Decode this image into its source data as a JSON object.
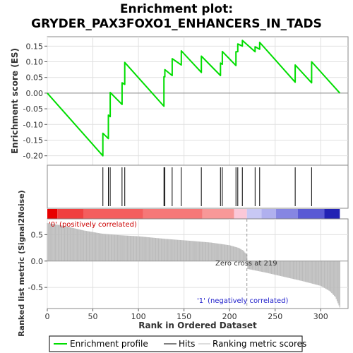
{
  "chart_data": {
    "type": "line",
    "title_line1": "Enrichment plot:",
    "title_line2": "GRYDER_PAX3FOXO1_ENHANCERS_IN_TADS",
    "es_ylabel": "Enrichment score (ES)",
    "metric_ylabel": "Ranked list metric (Signal2Noise)",
    "xlabel": "Rank in Ordered Dataset",
    "x_ticks": [
      "0",
      "50",
      "100",
      "150",
      "200",
      "250",
      "300"
    ],
    "es_ticks": [
      "-0.20",
      "-0.15",
      "-0.10",
      "-0.05",
      "0.00",
      "0.05",
      "0.10",
      "0.15"
    ],
    "metric_ticks": [
      "-0.5",
      "0.0",
      "0.5"
    ],
    "xlim": [
      0,
      330
    ],
    "es_ylim": [
      -0.23,
      0.18
    ],
    "metric_ylim": [
      -0.9,
      0.8
    ],
    "n_genes": 321,
    "zero_cross": 219,
    "zero_cross_label": "Zero cross at 219",
    "positive_label": "'0' (positively correlated)",
    "negative_label": "'1' (negatively correlated)",
    "hits": [
      61,
      67,
      69,
      82,
      85,
      128,
      129,
      137,
      147,
      169,
      190,
      192,
      207,
      209,
      214,
      228,
      233,
      272,
      290
    ],
    "es_points": [
      [
        0,
        0.0
      ],
      [
        61,
        -0.2
      ],
      [
        61,
        -0.128
      ],
      [
        67,
        -0.145
      ],
      [
        67,
        -0.07
      ],
      [
        69,
        -0.075
      ],
      [
        69,
        0.002
      ],
      [
        82,
        -0.036
      ],
      [
        82,
        0.033
      ],
      [
        85,
        0.028
      ],
      [
        85,
        0.098
      ],
      [
        128,
        -0.042
      ],
      [
        128,
        0.052
      ],
      [
        129,
        0.052
      ],
      [
        129,
        0.075
      ],
      [
        137,
        0.056
      ],
      [
        137,
        0.11
      ],
      [
        147,
        0.09
      ],
      [
        147,
        0.135
      ],
      [
        169,
        0.066
      ],
      [
        169,
        0.118
      ],
      [
        190,
        0.056
      ],
      [
        190,
        0.096
      ],
      [
        192,
        0.092
      ],
      [
        192,
        0.133
      ],
      [
        207,
        0.088
      ],
      [
        207,
        0.132
      ],
      [
        209,
        0.132
      ],
      [
        209,
        0.157
      ],
      [
        214,
        0.15
      ],
      [
        214,
        0.168
      ],
      [
        228,
        0.132
      ],
      [
        228,
        0.148
      ],
      [
        233,
        0.14
      ],
      [
        233,
        0.162
      ],
      [
        272,
        0.035
      ],
      [
        272,
        0.09
      ],
      [
        290,
        0.033
      ],
      [
        290,
        0.1
      ],
      [
        321,
        0.0
      ]
    ],
    "metric_profile": [
      [
        0,
        0.72
      ],
      [
        8,
        0.7
      ],
      [
        20,
        0.66
      ],
      [
        40,
        0.58
      ],
      [
        60,
        0.52
      ],
      [
        80,
        0.49
      ],
      [
        100,
        0.47
      ],
      [
        130,
        0.42
      ],
      [
        160,
        0.38
      ],
      [
        180,
        0.35
      ],
      [
        200,
        0.3
      ],
      [
        210,
        0.25
      ],
      [
        215,
        0.2
      ],
      [
        219,
        0.12
      ],
      [
        220,
        -0.15
      ],
      [
        240,
        -0.22
      ],
      [
        260,
        -0.3
      ],
      [
        280,
        -0.38
      ],
      [
        300,
        -0.47
      ],
      [
        310,
        -0.57
      ],
      [
        316,
        -0.68
      ],
      [
        321,
        -0.88
      ]
    ],
    "colorbar_segments": [
      {
        "from": 0,
        "to": 11,
        "color": "#e80000"
      },
      {
        "from": 11,
        "to": 40,
        "color": "#f04040"
      },
      {
        "from": 40,
        "to": 105,
        "color": "#f45e5e"
      },
      {
        "from": 105,
        "to": 170,
        "color": "#f67878"
      },
      {
        "from": 170,
        "to": 205,
        "color": "#f89898"
      },
      {
        "from": 205,
        "to": 219,
        "color": "#fbc8d8"
      },
      {
        "from": 219,
        "to": 235,
        "color": "#c8c8f4"
      },
      {
        "from": 235,
        "to": 251,
        "color": "#b0b0ee"
      },
      {
        "from": 251,
        "to": 275,
        "color": "#8686e2"
      },
      {
        "from": 275,
        "to": 304,
        "color": "#5a5ad4"
      },
      {
        "from": 304,
        "to": 321,
        "color": "#2222b4"
      }
    ],
    "colors": {
      "es_line": "#00dd00",
      "hit": "#000000",
      "metric_fill": "#bbbbbb",
      "positive_text": "#cc0000",
      "negative_text": "#2222cc",
      "grid": "#e0e0e0"
    },
    "legend": [
      {
        "label": "Enrichment profile",
        "key": "es"
      },
      {
        "label": "Hits",
        "key": "hit"
      },
      {
        "label": "Ranking metric scores",
        "key": "metric"
      }
    ]
  }
}
